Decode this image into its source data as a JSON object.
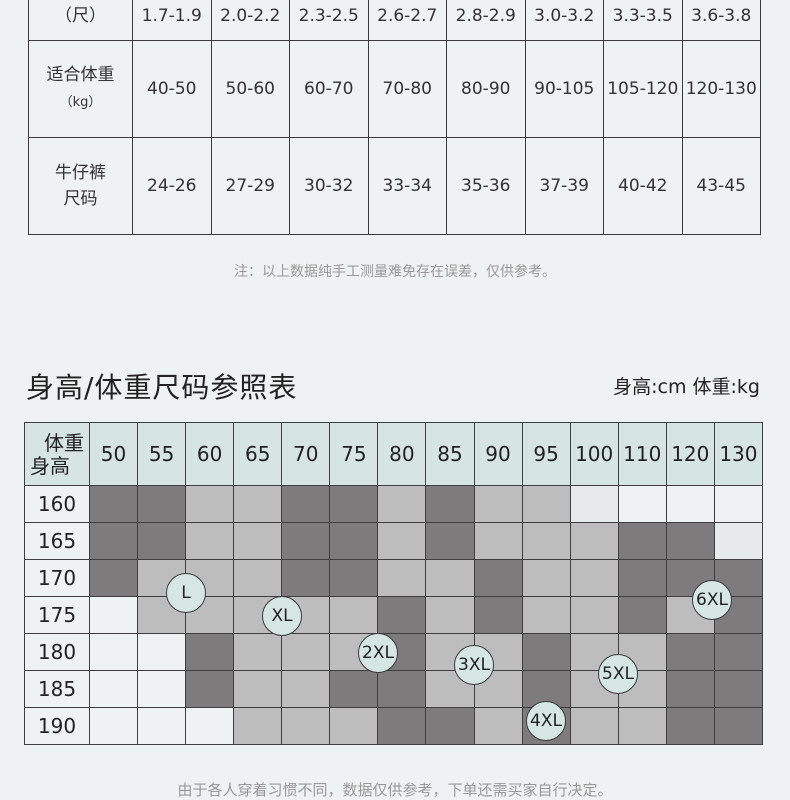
{
  "top_table": {
    "rows": [
      {
        "header": [
          "（尺）"
        ],
        "values": [
          "1.7-1.9",
          "2.0-2.2",
          "2.3-2.5",
          "2.6-2.7",
          "2.8-2.9",
          "3.0-3.2",
          "3.3-3.5",
          "3.6-3.8"
        ]
      },
      {
        "header": [
          "适合体重",
          "（kg）"
        ],
        "values": [
          "40-50",
          "50-60",
          "60-70",
          "70-80",
          "80-90",
          "90-105",
          "105-120",
          "120-130"
        ]
      },
      {
        "header": [
          "牛仔裤",
          "尺码"
        ],
        "values": [
          "24-26",
          "27-29",
          "30-32",
          "33-34",
          "35-36",
          "37-39",
          "40-42",
          "43-45"
        ]
      }
    ]
  },
  "note_top": "注：以上数据纯手工测量难免存在误差，仅供参考。",
  "size_chart": {
    "title": "身高/体重尺码参照表",
    "units": "身高:cm  体重:kg",
    "corner_weight": "体重",
    "corner_height": "身高",
    "weights": [
      "50",
      "55",
      "60",
      "65",
      "70",
      "75",
      "80",
      "85",
      "90",
      "95",
      "100",
      "110",
      "120",
      "130"
    ],
    "heights": [
      "160",
      "165",
      "170",
      "175",
      "180",
      "185",
      "190"
    ],
    "cells": [
      [
        2,
        2,
        1,
        1,
        2,
        2,
        1,
        2,
        1,
        1,
        3,
        0,
        0,
        0
      ],
      [
        2,
        2,
        1,
        1,
        2,
        2,
        1,
        2,
        1,
        1,
        1,
        2,
        2,
        3
      ],
      [
        2,
        1,
        1,
        1,
        2,
        2,
        1,
        1,
        2,
        1,
        1,
        2,
        2,
        2
      ],
      [
        0,
        1,
        1,
        1,
        1,
        1,
        2,
        1,
        2,
        1,
        1,
        2,
        1,
        2
      ],
      [
        0,
        0,
        2,
        1,
        1,
        1,
        2,
        1,
        1,
        2,
        1,
        1,
        2,
        2
      ],
      [
        0,
        0,
        2,
        1,
        1,
        2,
        2,
        1,
        1,
        2,
        1,
        1,
        2,
        2
      ],
      [
        0,
        0,
        0,
        1,
        1,
        1,
        2,
        2,
        1,
        2,
        1,
        1,
        2,
        2
      ]
    ],
    "colors": {
      "c0": "#eef2f2",
      "c1": "#bdbdbd",
      "c2": "#7d7b7b",
      "c3": "#e6eaea"
    },
    "badges": [
      {
        "label": "L"
      },
      {
        "label": "XL"
      },
      {
        "label": "2XL"
      },
      {
        "label": "3XL"
      },
      {
        "label": "4XL"
      },
      {
        "label": "5XL"
      },
      {
        "label": "6XL"
      }
    ]
  },
  "note_bottom": "由于各人穿着习惯不同，数据仅供参考，下单还需买家自行决定。"
}
